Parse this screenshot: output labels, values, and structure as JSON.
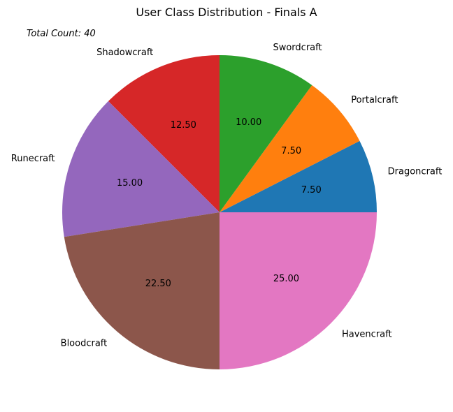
{
  "chart_data": {
    "type": "pie",
    "title": "User Class Distribution - Finals A",
    "annotation": "Total Count: 40",
    "start_angle_deg": 0,
    "direction": "counterclockwise",
    "value_format": "percent_2dp",
    "slices": [
      {
        "label": "Dragoncraft",
        "value": 7.5,
        "display": "7.50",
        "color": "#1f77b4"
      },
      {
        "label": "Portalcraft",
        "value": 7.5,
        "display": "7.50",
        "color": "#ff7f0e"
      },
      {
        "label": "Swordcraft",
        "value": 10.0,
        "display": "10.00",
        "color": "#2ca02c"
      },
      {
        "label": "Shadowcraft",
        "value": 12.5,
        "display": "12.50",
        "color": "#d62728"
      },
      {
        "label": "Runecraft",
        "value": 15.0,
        "display": "15.00",
        "color": "#9467bd"
      },
      {
        "label": "Bloodcraft",
        "value": 22.5,
        "display": "22.50",
        "color": "#8c564b"
      },
      {
        "label": "Havencraft",
        "value": 25.0,
        "display": "25.00",
        "color": "#e377c2"
      }
    ]
  }
}
